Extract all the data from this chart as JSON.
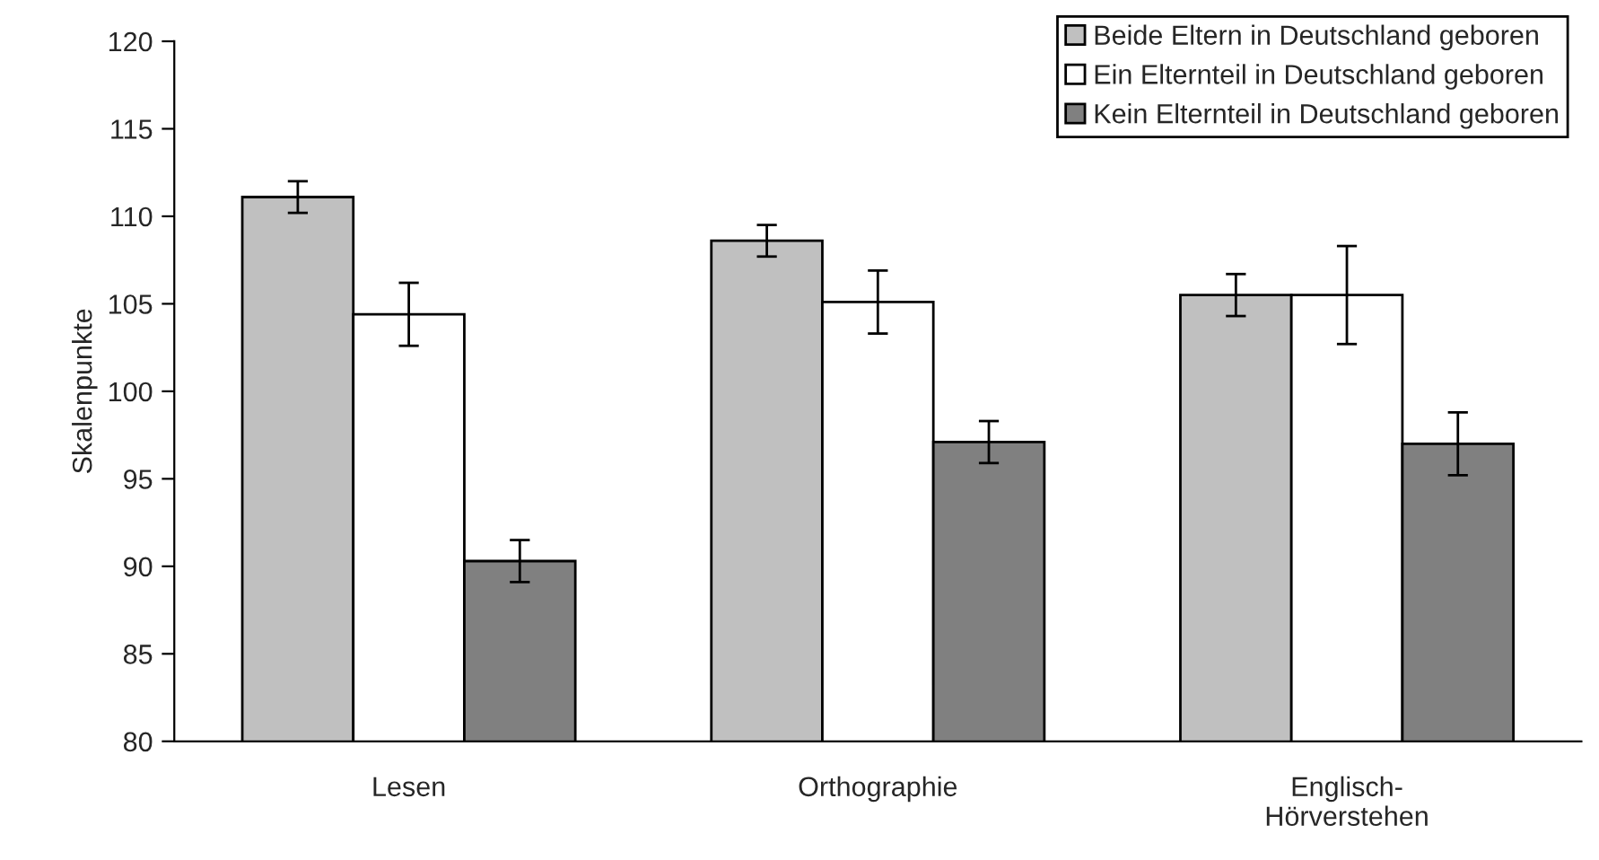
{
  "chart_data": {
    "type": "bar",
    "ylabel": "Skalenpunkte",
    "categories": [
      "Lesen",
      "Orthographie",
      "Englisch-\nHörverstehen"
    ],
    "series": [
      {
        "name": "Beide Eltern in Deutschland geboren",
        "color": "#c0c0c0",
        "values": [
          111.1,
          108.6,
          105.5
        ],
        "errors": [
          0.9,
          0.9,
          1.2
        ]
      },
      {
        "name": "Ein Elternteil in Deutschland geboren",
        "color": "#ffffff",
        "values": [
          104.4,
          105.1,
          105.5
        ],
        "errors": [
          1.8,
          1.8,
          2.8
        ]
      },
      {
        "name": "Kein Elternteil in Deutschland geboren",
        "color": "#808080",
        "values": [
          90.3,
          97.1,
          97.0
        ],
        "errors": [
          1.2,
          1.2,
          1.8
        ]
      }
    ],
    "ylim": [
      80,
      120
    ],
    "yticks": [
      80,
      85,
      90,
      95,
      100,
      105,
      110,
      115,
      120
    ],
    "grid": false,
    "legend": "top right"
  }
}
